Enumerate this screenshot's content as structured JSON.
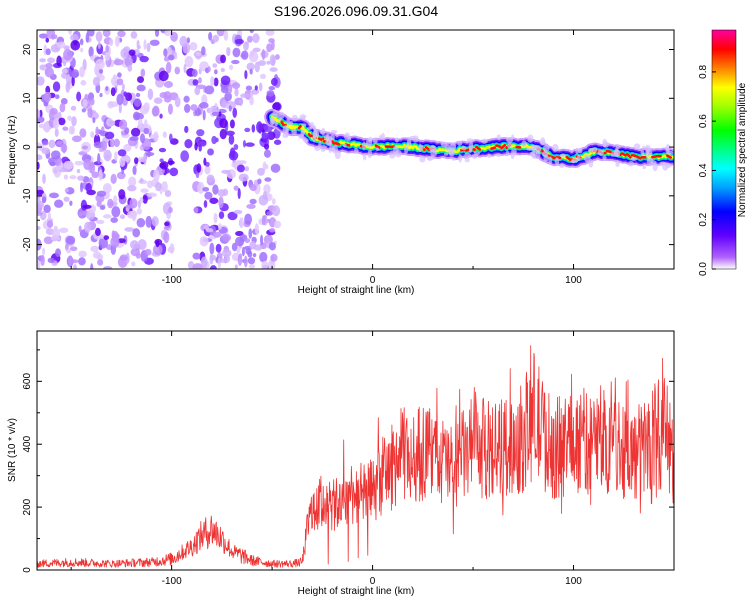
{
  "title": "S196.2026.096.09.31.G04",
  "chart_data": [
    {
      "type": "heatmap",
      "xlabel": "Height of straight line (km)",
      "ylabel": "Frequency (Hz)",
      "xlim": [
        -167,
        150
      ],
      "ylim": [
        -25,
        24
      ],
      "xticks": [
        -100,
        0,
        100
      ],
      "yticks": [
        -20,
        -10,
        0,
        10,
        20
      ],
      "colorbar": {
        "label": "Normalized spectral amplitude",
        "range": [
          0,
          0.97
        ],
        "ticks": [
          0.0,
          0.2,
          0.4,
          0.6,
          0.8
        ],
        "colormap": [
          "#ffffff",
          "#8000ff",
          "#0000ff",
          "#00ffff",
          "#00ff00",
          "#ffff00",
          "#ff8000",
          "#ff0000",
          "#ff00a0"
        ]
      },
      "ridge": {
        "x": [
          -50,
          -45,
          -40,
          -35,
          -30,
          -25,
          -20,
          -10,
          0,
          10,
          20,
          30,
          40,
          50,
          60,
          70,
          80,
          90,
          100,
          110,
          120,
          130,
          140,
          150
        ],
        "freq": [
          6,
          5,
          4,
          4,
          2,
          1.5,
          1,
          0.5,
          0,
          0.2,
          0,
          -0.5,
          -0.8,
          -0.3,
          0,
          0.2,
          0,
          -2,
          -2.5,
          -1,
          -1,
          -2,
          -2,
          -2
        ]
      }
    },
    {
      "type": "line",
      "xlabel": "Height of straight line (km)",
      "ylabel": "SNR (10 * v/v)",
      "xlim": [
        -167,
        150
      ],
      "ylim": [
        0,
        760
      ],
      "xticks": [
        -100,
        0,
        100
      ],
      "yticks": [
        0,
        200,
        400,
        600
      ],
      "color": "#ee3333",
      "series": [
        {
          "name": "SNR",
          "x": [
            -167,
            -150,
            -130,
            -110,
            -100,
            -90,
            -85,
            -80,
            -75,
            -70,
            -60,
            -50,
            -40,
            -35,
            -32,
            -30,
            -25,
            -20,
            -15,
            -10,
            -5,
            0,
            5,
            10,
            15,
            20,
            25,
            30,
            40,
            50,
            60,
            70,
            75,
            80,
            85,
            90,
            100,
            110,
            120,
            130,
            140,
            145,
            150
          ],
          "y": [
            20,
            25,
            20,
            25,
            35,
            75,
            110,
            130,
            100,
            60,
            30,
            20,
            20,
            25,
            150,
            170,
            220,
            200,
            220,
            250,
            240,
            250,
            300,
            330,
            370,
            350,
            380,
            360,
            330,
            390,
            380,
            400,
            420,
            500,
            430,
            380,
            420,
            400,
            420,
            360,
            420,
            450,
            350
          ]
        }
      ]
    }
  ]
}
